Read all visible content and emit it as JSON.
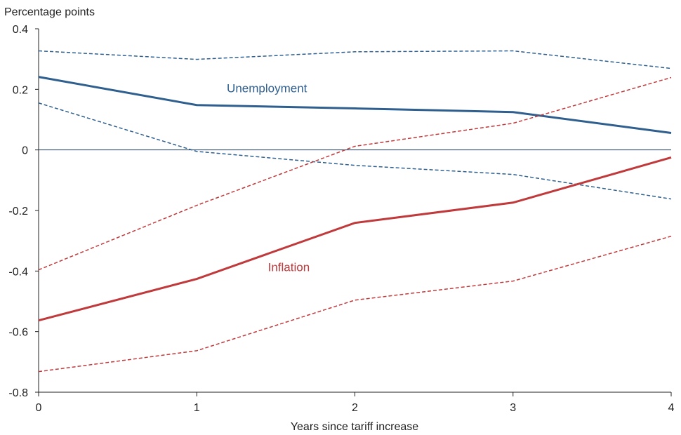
{
  "chart_data": {
    "type": "line",
    "title": "",
    "ylabel": "Percentage points",
    "xlabel": "Years since tariff increase",
    "x": [
      0,
      1,
      2,
      3,
      4
    ],
    "xlim": [
      0,
      4
    ],
    "ylim": [
      -0.8,
      0.4
    ],
    "xticks": [
      "0",
      "1",
      "2",
      "3",
      "4"
    ],
    "yticks": [
      0.4,
      0.2,
      0,
      -0.2,
      -0.4,
      -0.6,
      -0.8
    ],
    "ytick_labels": [
      "0.4",
      "0.2",
      "0",
      "-0.2",
      "-0.4",
      "-0.6",
      "-0.8"
    ],
    "grid": false,
    "legend": "none (inline labels)",
    "series": [
      {
        "name": "Unemployment",
        "color": "#2e5f8e",
        "style": "solid",
        "values": [
          0.241,
          0.148,
          0.137,
          0.125,
          0.056
        ]
      },
      {
        "color": "#2e5f8e",
        "style": "dashed",
        "values": [
          0.327,
          0.299,
          0.324,
          0.327,
          0.269
        ]
      },
      {
        "color": "#2e5f8e",
        "style": "dashed",
        "values": [
          0.155,
          -0.005,
          -0.051,
          -0.081,
          -0.162
        ]
      },
      {
        "name": "Inflation",
        "color": "#c0393b",
        "style": "solid",
        "values": [
          -0.563,
          -0.426,
          -0.241,
          -0.174,
          -0.025
        ]
      },
      {
        "color": "#c0393b",
        "style": "dashed",
        "values": [
          -0.396,
          -0.183,
          0.012,
          0.088,
          0.239
        ]
      },
      {
        "color": "#c0393b",
        "style": "dashed",
        "values": [
          -0.732,
          -0.663,
          -0.496,
          -0.433,
          -0.285
        ]
      }
    ],
    "annotations": [
      {
        "text": "Unemployment",
        "color": "#2e5f8e",
        "x": 1.19,
        "y": 0.19
      },
      {
        "text": "Inflation",
        "color": "#c0393b",
        "x": 1.45,
        "y": -0.4
      }
    ]
  }
}
